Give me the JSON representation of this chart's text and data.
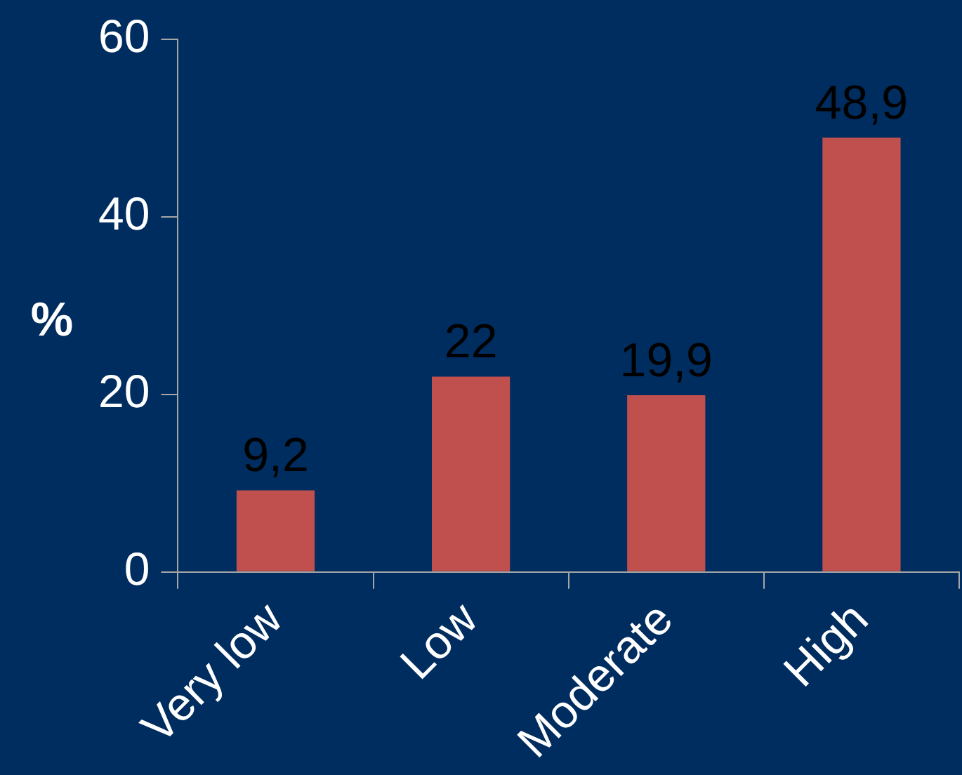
{
  "chart_data": {
    "type": "bar",
    "ylabel": "%",
    "categories": [
      "Very low",
      "Low",
      "Moderate",
      "High"
    ],
    "values": [
      9.2,
      22,
      19.9,
      48.9
    ],
    "value_labels": [
      "9,2",
      "22",
      "19,9",
      "48,9"
    ],
    "color": "#c0504d",
    "ylim": [
      0,
      60
    ],
    "yticks": [
      0,
      20,
      40,
      60
    ],
    "grid": false,
    "legend": false
  }
}
